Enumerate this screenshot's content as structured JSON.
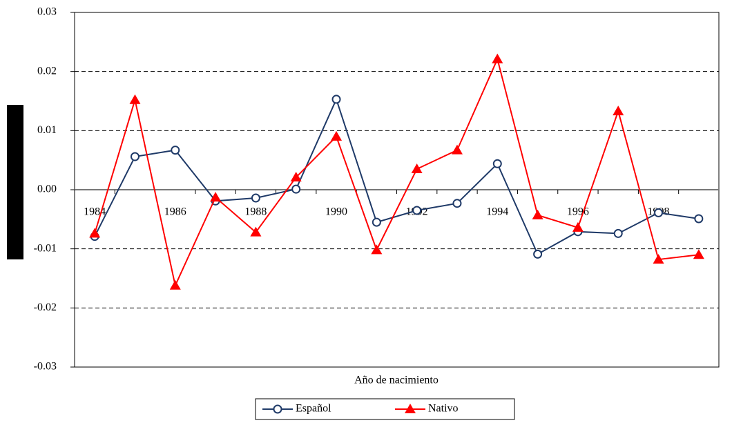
{
  "chart_data": {
    "type": "line",
    "x_label": "Año de nacimiento",
    "categories": [
      "1984",
      null,
      "1986",
      null,
      "1988",
      null,
      "1990",
      null,
      "1992",
      null,
      "1994",
      null,
      "1996",
      null,
      "1998",
      null
    ],
    "series": [
      {
        "name": "Español",
        "color": "#1f3a68",
        "marker": "circle",
        "values": [
          -0.0079,
          0.0056,
          0.0067,
          -0.0019,
          -0.0014,
          0.0001,
          0.0153,
          -0.0055,
          -0.0035,
          -0.0023,
          0.0044,
          -0.0109,
          -0.0071,
          -0.0074,
          -0.0039,
          -0.0049
        ]
      },
      {
        "name": "Nativo",
        "color": "#ff0000",
        "marker": "triangle",
        "values": [
          -0.0074,
          0.0152,
          -0.0162,
          -0.0013,
          -0.0072,
          0.0021,
          0.009,
          -0.0102,
          0.0035,
          0.0067,
          0.0221,
          -0.0043,
          -0.0064,
          0.0133,
          -0.0118,
          -0.011
        ]
      }
    ],
    "ylim": [
      -0.03,
      0.03
    ],
    "yticks": [
      -0.03,
      -0.02,
      -0.01,
      {
        "value": 0,
        "label": "0.00"
      },
      0.01,
      0.02,
      0.03
    ],
    "grid": true,
    "legend": "bottom"
  }
}
